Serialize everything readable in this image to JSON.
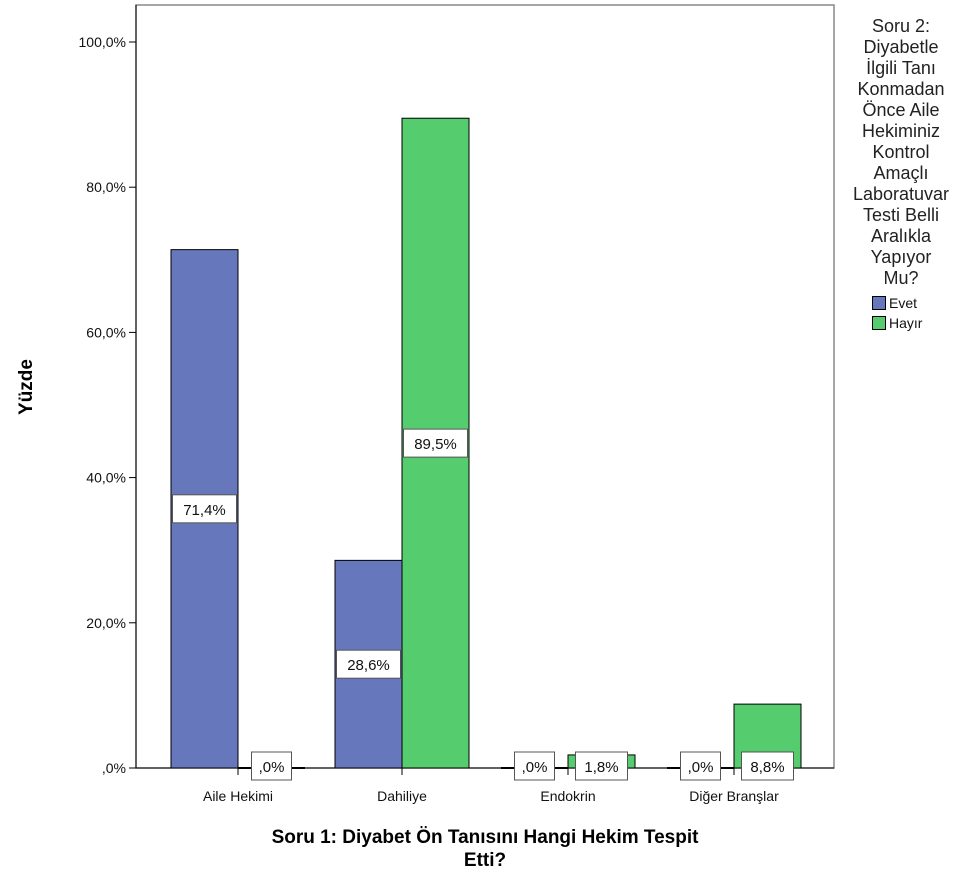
{
  "chart_data": {
    "type": "bar",
    "xlabel": "Soru 1: Diyabet Ön Tanısını Hangi Hekim Tespit Etti?",
    "ylabel": "Yüzde",
    "categories": [
      "Aile Hekimi",
      "Dahiliye",
      "Endokrin",
      "Diğer Branşlar"
    ],
    "series": [
      {
        "name": "Evet",
        "color": "#6677bb",
        "values": [
          71.4,
          28.6,
          0.0,
          0.0
        ],
        "labels": [
          "71,4%",
          "28,6%",
          ",0%",
          ",0%"
        ]
      },
      {
        "name": "Hayır",
        "color": "#55cc6e",
        "values": [
          0.0,
          89.5,
          1.8,
          8.8
        ],
        "labels": [
          ",0%",
          "89,5%",
          "1,8%",
          "8,8%"
        ]
      }
    ],
    "ylim": [
      0,
      100
    ],
    "yticks": [
      0,
      20,
      40,
      60,
      80,
      100
    ],
    "ytick_labels": [
      ",0%",
      "20,0%",
      "40,0%",
      "60,0%",
      "80,0%",
      "100,0%"
    ],
    "grid": false,
    "legend": {
      "placement": "right",
      "title_lines": [
        "Soru 2:",
        "Diyabetle",
        "İlgili Tanı",
        "Konmadan",
        "Önce Aile",
        "Hekiminiz",
        "Kontrol",
        "Amaçlı",
        "Laboratuvar",
        "Testi Belli",
        "Aralıkla",
        "Yapıyor",
        "Mu?"
      ]
    }
  }
}
